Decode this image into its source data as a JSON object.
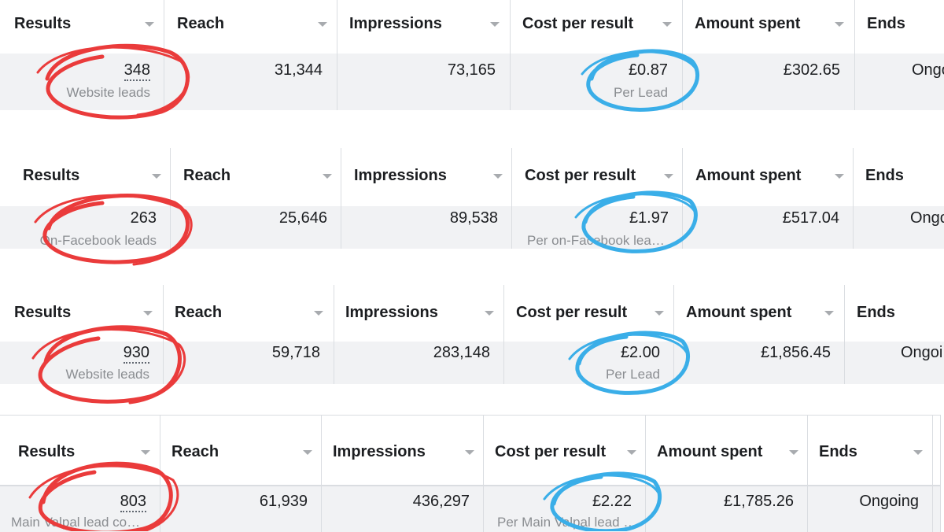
{
  "tables": [
    {
      "headers": [
        "Results",
        "Reach",
        "Impressions",
        "Cost per result",
        "Amount spent",
        "Ends"
      ],
      "results": "348",
      "results_sub": "Website leads",
      "reach": "31,344",
      "impressions": "73,165",
      "cost": "£0.87",
      "cost_sub": "Per Lead",
      "spent": "£302.65",
      "ends": "Ongo"
    },
    {
      "headers": [
        "Results",
        "Reach",
        "Impressions",
        "Cost per result",
        "Amount spent",
        "Ends"
      ],
      "results": "263",
      "results_sub": "On-Facebook leads",
      "reach": "25,646",
      "impressions": "89,538",
      "cost": "£1.97",
      "cost_sub": "Per on-Facebook lea…",
      "spent": "£517.04",
      "ends": "Ongo"
    },
    {
      "headers": [
        "Results",
        "Reach",
        "Impressions",
        "Cost per result",
        "Amount spent",
        "Ends"
      ],
      "results": "930",
      "results_sub": "Website leads",
      "reach": "59,718",
      "impressions": "283,148",
      "cost": "£2.00",
      "cost_sub": "Per Lead",
      "spent": "£1,856.45",
      "ends": "Ongoi"
    },
    {
      "headers": [
        "Results",
        "Reach",
        "Impressions",
        "Cost per result",
        "Amount spent",
        "Ends"
      ],
      "results": "803",
      "results_sub": "Main Valpal lead co…",
      "reach": "61,939",
      "impressions": "436,297",
      "cost": "£2.22",
      "cost_sub": "Per Main Valpal lead …",
      "spent": "£1,785.26",
      "ends": "Ongoing"
    }
  ],
  "colors": {
    "red_circle": "#ea3b3b",
    "blue_circle": "#3aaee8",
    "row_bg": "#f1f2f4"
  }
}
